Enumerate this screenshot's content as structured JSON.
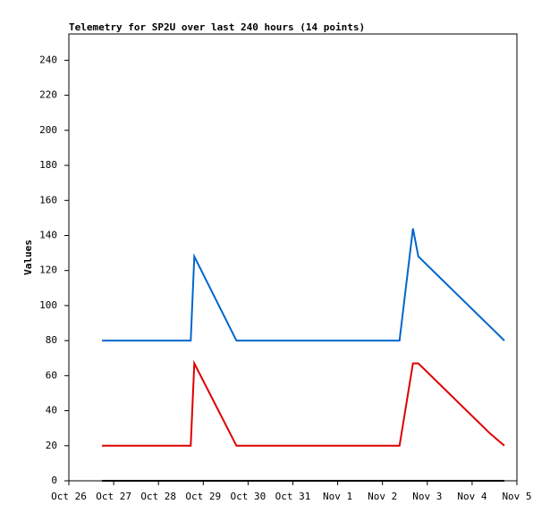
{
  "chart_data": {
    "type": "line",
    "title": "Telemetry for SP2U over last 240 hours (14 points)",
    "y_label": "Values",
    "x": [
      0.74,
      2.72,
      2.8,
      3.74,
      4.74,
      5.74,
      6.74,
      7.38,
      7.68,
      7.8,
      8.44,
      9.08,
      9.4,
      9.72
    ],
    "series": [
      {
        "color": "#0066cc",
        "values": [
          80,
          80,
          128,
          80,
          80,
          80,
          80,
          80,
          144,
          128,
          112,
          96,
          88,
          80
        ]
      },
      {
        "color": "#dd0000",
        "values": [
          20,
          20,
          67,
          20,
          20,
          20,
          20,
          20,
          67,
          67,
          51,
          35,
          27,
          20
        ]
      },
      {
        "color": "#000000",
        "values": [
          0,
          0,
          0,
          0,
          0,
          0,
          0,
          0,
          0,
          0,
          0,
          0,
          0,
          0
        ]
      }
    ],
    "xlim": [
      0,
      10
    ],
    "xticks": [
      {
        "value": 0,
        "label": "Oct 26"
      },
      {
        "value": 1,
        "label": "Oct 27"
      },
      {
        "value": 2,
        "label": "Oct 28"
      },
      {
        "value": 3,
        "label": "Oct 29"
      },
      {
        "value": 4,
        "label": "Oct 30"
      },
      {
        "value": 5,
        "label": "Oct 31"
      },
      {
        "value": 6,
        "label": "Nov 1"
      },
      {
        "value": 7,
        "label": "Nov 2"
      },
      {
        "value": 8,
        "label": "Nov 3"
      },
      {
        "value": 9,
        "label": "Nov 4"
      },
      {
        "value": 10,
        "label": "Nov 5"
      }
    ],
    "ylim": [
      0,
      255
    ],
    "yticks": [
      0,
      20,
      40,
      60,
      80,
      100,
      120,
      140,
      160,
      180,
      200,
      220,
      240
    ]
  }
}
